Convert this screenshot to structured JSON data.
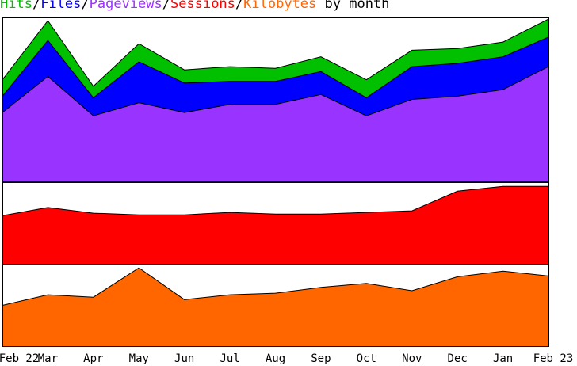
{
  "title": {
    "hits": "Hits",
    "files": "Files",
    "pageviews": "Pageviews",
    "sessions": "Sessions",
    "kilobytes": "Kilobytes",
    "sep": "/",
    "suffix": " by month"
  },
  "colors": {
    "hits": "#00c000",
    "files": "#0000ff",
    "pageviews": "#9933ff",
    "sessions": "#ff0000",
    "kilobytes": "#ff6600",
    "title_suffix": "#000000"
  },
  "chart_data": {
    "type": "area",
    "x": [
      "Feb 22",
      "Mar",
      "Apr",
      "May",
      "Jun",
      "Jul",
      "Aug",
      "Sep",
      "Oct",
      "Nov",
      "Dec",
      "Jan",
      "Feb 23"
    ],
    "panels": [
      {
        "ylim": [
          0,
          100
        ],
        "series": [
          {
            "name": "Hits",
            "values": [
              62,
              98,
              58,
              84,
              68,
              70,
              69,
              76,
              62,
              80,
              81,
              85,
              99
            ]
          },
          {
            "name": "Files",
            "values": [
              52,
              86,
              51,
              73,
              60,
              61,
              61,
              67,
              51,
              70,
              72,
              76,
              88
            ]
          },
          {
            "name": "Pageviews",
            "values": [
              42,
              64,
              40,
              48,
              42,
              47,
              47,
              53,
              40,
              50,
              52,
              56,
              70
            ]
          }
        ]
      },
      {
        "ylim": [
          0,
          100
        ],
        "series": [
          {
            "name": "Sessions",
            "values": [
              59,
              69,
              62,
              60,
              60,
              63,
              61,
              61,
              63,
              65,
              89,
              95,
              95
            ]
          }
        ]
      },
      {
        "ylim": [
          0,
          100
        ],
        "series": [
          {
            "name": "Kilobytes",
            "values": [
              50,
              63,
              60,
              96,
              57,
              63,
              65,
              72,
              77,
              68,
              85,
              92,
              86
            ]
          }
        ]
      }
    ]
  }
}
